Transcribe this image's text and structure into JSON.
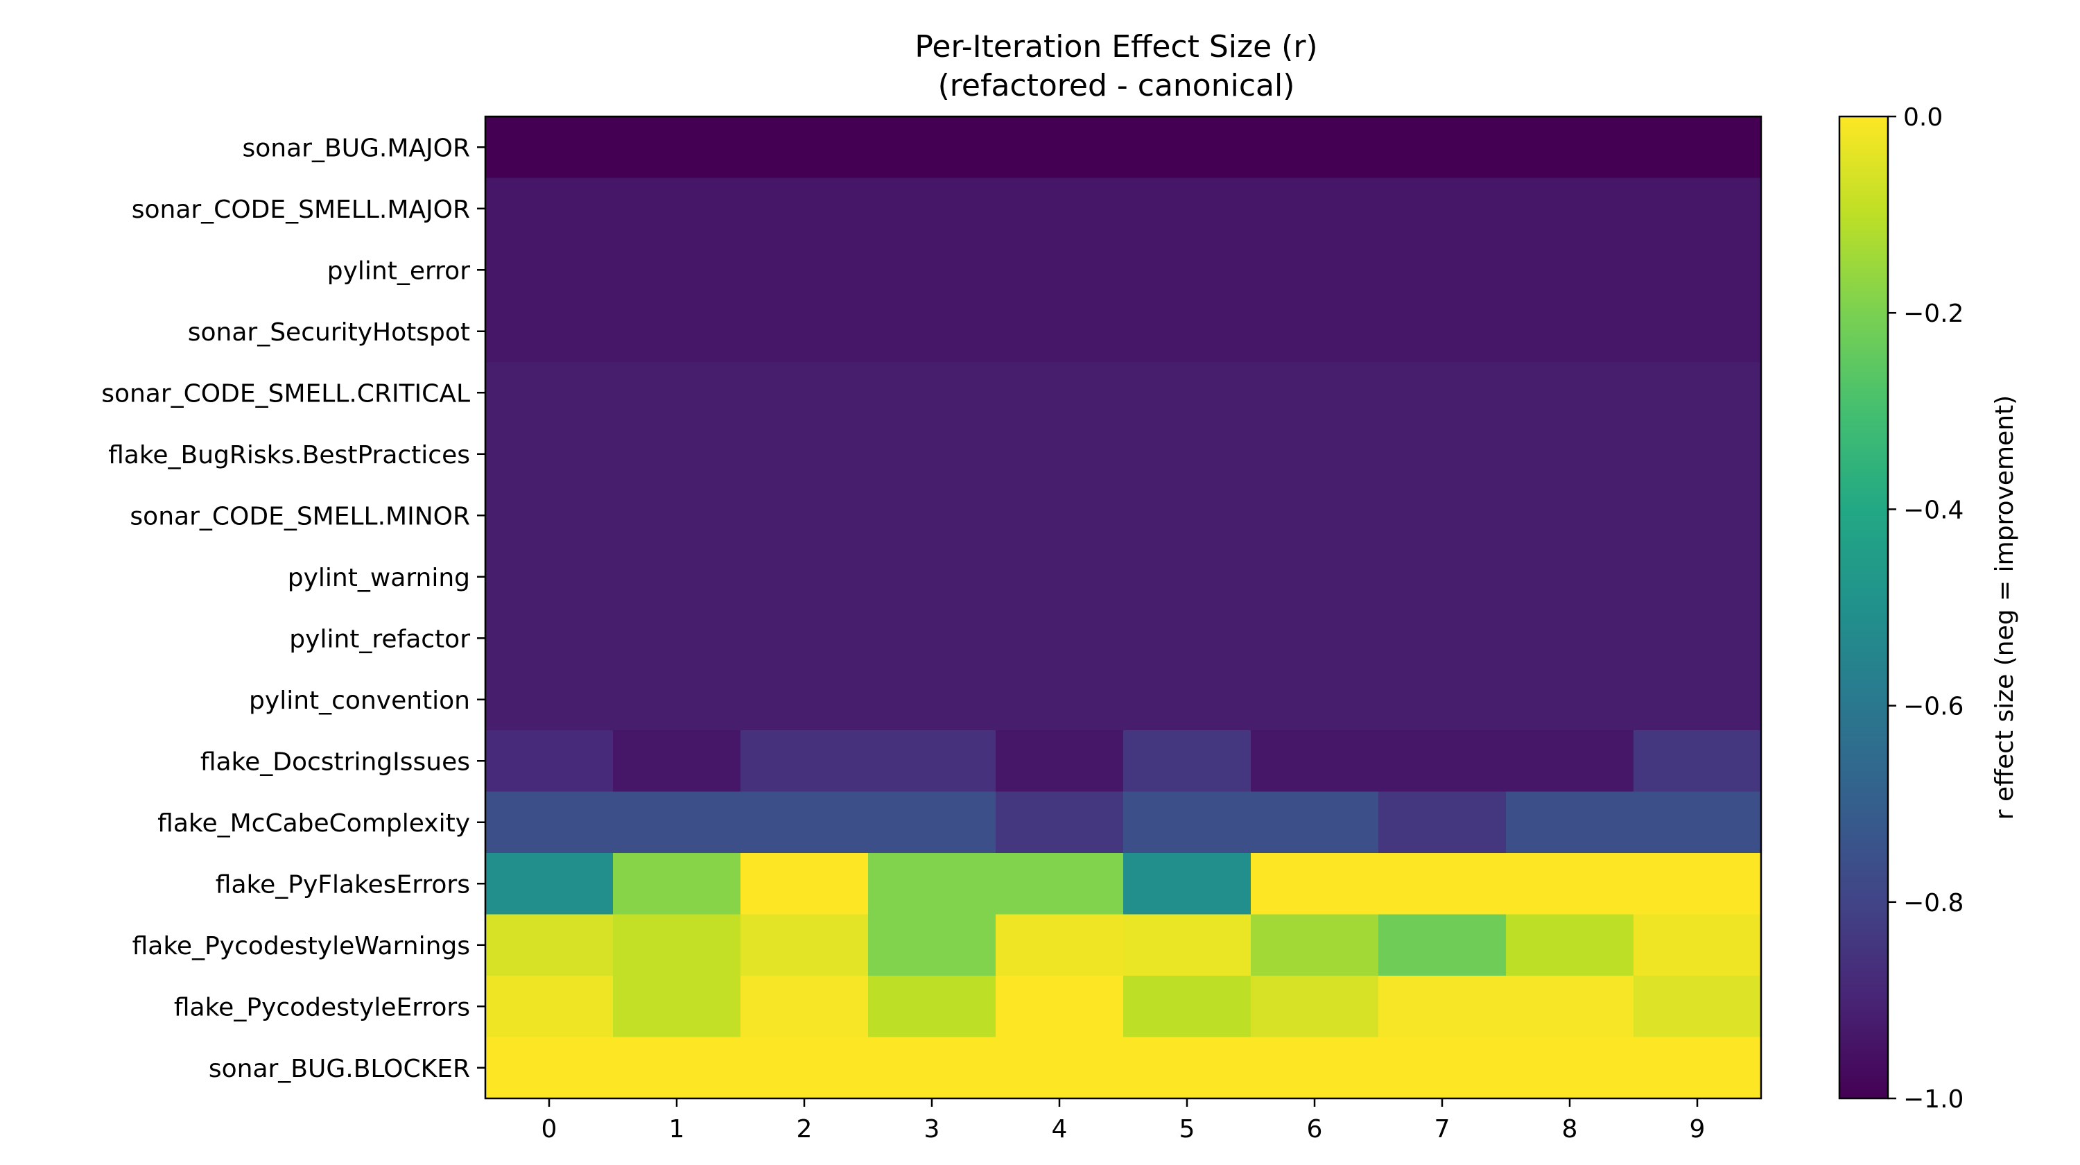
{
  "chart_data": {
    "type": "heatmap",
    "title_line1": "Per-Iteration Effect Size (r)",
    "title_line2": "(refactored - canonical)",
    "xlabel": "",
    "ylabel": "",
    "x": [
      "0",
      "1",
      "2",
      "3",
      "4",
      "5",
      "6",
      "7",
      "8",
      "9"
    ],
    "rows": [
      "sonar_BUG.MAJOR",
      "sonar_CODE_SMELL.MAJOR",
      "pylint_error",
      "sonar_SecurityHotspot",
      "sonar_CODE_SMELL.CRITICAL",
      "flake_BugRisks.BestPractices",
      "sonar_CODE_SMELL.MINOR",
      "pylint_warning",
      "pylint_refactor",
      "pylint_convention",
      "flake_DocstringIssues",
      "flake_McCabeComplexity",
      "flake_PyFlakesErrors",
      "flake_PycodestyleWarnings",
      "flake_PycodestyleErrors",
      "sonar_BUG.BLOCKER"
    ],
    "values": [
      [
        -1.0,
        -1.0,
        -1.0,
        -1.0,
        -1.0,
        -1.0,
        -1.0,
        -1.0,
        -1.0,
        -1.0
      ],
      [
        -0.94,
        -0.94,
        -0.94,
        -0.94,
        -0.94,
        -0.94,
        -0.94,
        -0.94,
        -0.94,
        -0.94
      ],
      [
        -0.94,
        -0.94,
        -0.94,
        -0.94,
        -0.94,
        -0.94,
        -0.94,
        -0.94,
        -0.94,
        -0.94
      ],
      [
        -0.94,
        -0.94,
        -0.94,
        -0.94,
        -0.94,
        -0.94,
        -0.94,
        -0.94,
        -0.94,
        -0.94
      ],
      [
        -0.92,
        -0.92,
        -0.92,
        -0.92,
        -0.92,
        -0.92,
        -0.92,
        -0.92,
        -0.92,
        -0.92
      ],
      [
        -0.92,
        -0.92,
        -0.92,
        -0.92,
        -0.92,
        -0.92,
        -0.92,
        -0.92,
        -0.92,
        -0.92
      ],
      [
        -0.92,
        -0.92,
        -0.92,
        -0.92,
        -0.92,
        -0.92,
        -0.92,
        -0.92,
        -0.92,
        -0.92
      ],
      [
        -0.92,
        -0.92,
        -0.92,
        -0.92,
        -0.92,
        -0.92,
        -0.92,
        -0.92,
        -0.92,
        -0.92
      ],
      [
        -0.92,
        -0.92,
        -0.92,
        -0.92,
        -0.92,
        -0.92,
        -0.92,
        -0.92,
        -0.92,
        -0.92
      ],
      [
        -0.92,
        -0.92,
        -0.92,
        -0.92,
        -0.92,
        -0.92,
        -0.92,
        -0.92,
        -0.92,
        -0.92
      ],
      [
        -0.88,
        -0.94,
        -0.86,
        -0.86,
        -0.94,
        -0.84,
        -0.94,
        -0.94,
        -0.94,
        -0.84
      ],
      [
        -0.76,
        -0.76,
        -0.76,
        -0.76,
        -0.84,
        -0.76,
        -0.76,
        -0.84,
        -0.76,
        -0.76
      ],
      [
        -0.51,
        -0.18,
        0.0,
        -0.19,
        -0.19,
        -0.51,
        0.0,
        0.0,
        0.0,
        0.0
      ],
      [
        -0.06,
        -0.09,
        -0.04,
        -0.19,
        -0.02,
        -0.03,
        -0.14,
        -0.22,
        -0.1,
        -0.02
      ],
      [
        -0.02,
        -0.09,
        -0.01,
        -0.1,
        0.0,
        -0.1,
        -0.06,
        -0.01,
        -0.01,
        -0.05
      ],
      [
        0.0,
        0.0,
        0.0,
        0.0,
        0.0,
        0.0,
        0.0,
        0.0,
        0.0,
        0.0
      ]
    ],
    "colormap": "viridis",
    "vmin": -1.0,
    "vmax": 0.0,
    "colorbar_label": "r effect size (neg = improvement)",
    "colorbar_ticks": [
      "0.0",
      "−0.2",
      "−0.4",
      "−0.6",
      "−0.8",
      "−1.0"
    ],
    "colorbar_tick_values": [
      0.0,
      -0.2,
      -0.4,
      -0.6,
      -0.8,
      -1.0
    ]
  }
}
